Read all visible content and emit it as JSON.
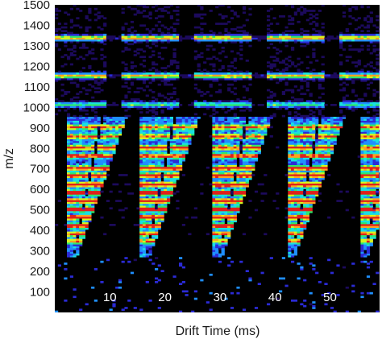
{
  "chart_data": {
    "type": "heatmap",
    "title": "",
    "xlabel": "Drift Time (ms)",
    "ylabel": "m/z",
    "xlim": [
      0,
      59
    ],
    "ylim": [
      0,
      1500
    ],
    "x_ticks": [
      10,
      20,
      30,
      40,
      50
    ],
    "y_ticks": [
      100,
      200,
      300,
      400,
      500,
      600,
      700,
      800,
      900,
      1000,
      1100,
      1200,
      1300,
      1400,
      1500
    ],
    "colormap": [
      "#000000",
      "#1c0a5c",
      "#2b2bd6",
      "#1f8fff",
      "#19e0e0",
      "#2ee86a",
      "#d6f51e",
      "#ffa21f",
      "#e0201a"
    ],
    "background_color": "#000000",
    "repeat_period_ms": 13.2,
    "signal_floor_mz": 270,
    "horizontal_bands": [
      {
        "mz": 1335,
        "intensity": 0.82
      },
      {
        "mz": 1150,
        "intensity": 0.8
      },
      {
        "mz": 1010,
        "intensity": 0.55
      },
      {
        "mz": 900,
        "intensity": 0.62
      },
      {
        "mz": 855,
        "intensity": 0.68
      },
      {
        "mz": 800,
        "intensity": 0.72
      },
      {
        "mz": 760,
        "intensity": 0.7
      },
      {
        "mz": 700,
        "intensity": 0.75
      },
      {
        "mz": 665,
        "intensity": 0.82
      },
      {
        "mz": 620,
        "intensity": 0.82
      },
      {
        "mz": 580,
        "intensity": 0.95
      },
      {
        "mz": 540,
        "intensity": 0.85
      },
      {
        "mz": 500,
        "intensity": 0.88
      },
      {
        "mz": 460,
        "intensity": 0.85
      },
      {
        "mz": 420,
        "intensity": 0.8
      },
      {
        "mz": 380,
        "intensity": 0.7
      },
      {
        "mz": 345,
        "intensity": 0.6
      }
    ]
  }
}
